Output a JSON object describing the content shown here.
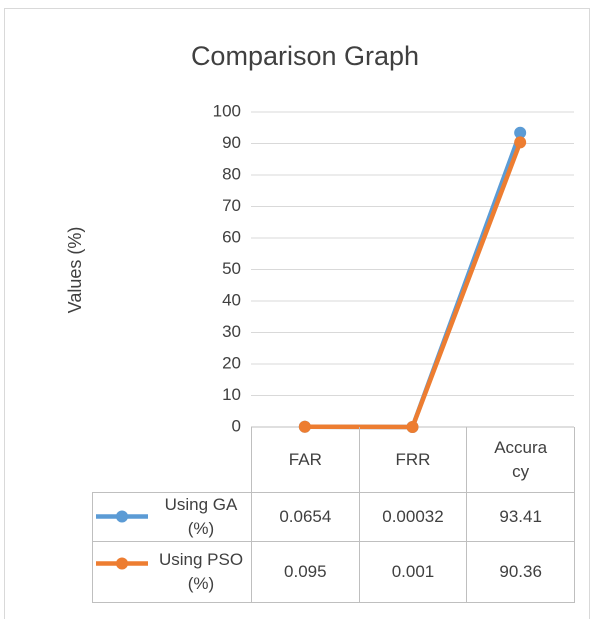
{
  "chart_data": {
    "type": "line",
    "title": "Comparison Graph",
    "ylabel": "Values (%)",
    "categories": [
      "FAR",
      "FRR",
      "Accuracy"
    ],
    "series": [
      {
        "name": "Using GA (%)",
        "color": "#5b9bd5",
        "values": [
          0.0654,
          0.00032,
          93.41
        ]
      },
      {
        "name": "Using PSO (%)",
        "color": "#ed7d31",
        "values": [
          0.095,
          0.001,
          90.36
        ]
      }
    ],
    "ylim": [
      0,
      100
    ],
    "yticks": [
      0,
      10,
      20,
      30,
      40,
      50,
      60,
      70,
      80,
      90,
      100
    ],
    "grid": true,
    "data_table": true
  }
}
